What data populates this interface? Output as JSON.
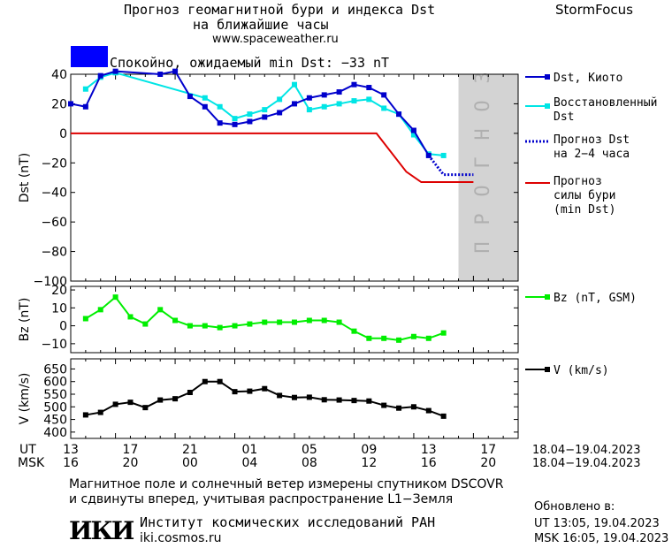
{
  "header": {
    "title_line1": "Прогноз геомагнитной бури и индекса Dst",
    "title_line2": "на ближайшие часы",
    "site": "www.spaceweather.ru",
    "brand": "StormFocus"
  },
  "status": {
    "text": "Спокойно, ожидаемый min Dst: −33 nT",
    "color": "#0000ff"
  },
  "forecast_zone_label": "ПРОГНОЗ",
  "colors": {
    "dst_kyoto": "#0000cc",
    "dst_reconstructed": "#00e5e5",
    "dst_forecast": "#0000cc",
    "storm_forecast": "#dd0000",
    "bz": "#00ee00",
    "v": "#000000",
    "forecast_zone": "#d3d3d3"
  },
  "time_axis": {
    "ut_label": "UT",
    "msk_label": "MSK",
    "ut_ticks": [
      "13",
      "17",
      "21",
      "01",
      "05",
      "09",
      "13",
      "17"
    ],
    "msk_ticks": [
      "16",
      "20",
      "00",
      "04",
      "08",
      "12",
      "16",
      "20"
    ],
    "ut_range": "18.04−19.04.2023",
    "msk_range": "18.04−19.04.2023"
  },
  "footer": {
    "line1": "Магнитное поле и солнечный ветер измерены спутником DSCOVR",
    "line2": "и сдвинуты вперед, учитывая распространение L1−Земля",
    "logo": "ИКИ",
    "institute": "Институт космических исследований РАН",
    "institute_site": "iki.cosmos.ru",
    "updated_label": "Обновлено в:",
    "updated_ut": "UT  13:05, 19.04.2023",
    "updated_msk": "MSK 16:05, 19.04.2023"
  },
  "chart_data": [
    {
      "type": "line",
      "panel": "dst",
      "ylabel": "Dst (nT)",
      "ylim": [
        -100,
        40
      ],
      "yticks": [
        40,
        20,
        0,
        -20,
        -40,
        -60,
        -80,
        -100
      ],
      "xlim": [
        0,
        30
      ],
      "forecast_zone": [
        26,
        30
      ],
      "series": [
        {
          "name": "Dst, Киото",
          "x": [
            0,
            1,
            2,
            3,
            6,
            7,
            8,
            9,
            10,
            11,
            12,
            13,
            14,
            15,
            16,
            17,
            18,
            19,
            20,
            21,
            22,
            23,
            24
          ],
          "y": [
            20,
            18,
            39,
            42,
            40,
            42,
            25,
            18,
            7,
            6,
            8,
            11,
            14,
            20,
            24,
            26,
            28,
            33,
            31,
            26,
            13,
            2,
            -15
          ]
        },
        {
          "name": "Восстановленный Dst",
          "x": [
            1,
            2,
            3,
            9,
            10,
            11,
            12,
            13,
            14,
            15,
            16,
            17,
            18,
            19,
            20,
            21,
            22,
            23,
            24,
            25
          ],
          "y": [
            30,
            38,
            41,
            24,
            18,
            10,
            13,
            16,
            23,
            33,
            16,
            18,
            20,
            22,
            23,
            17,
            13,
            -1,
            -14,
            -15
          ]
        },
        {
          "name": "Прогноз Dst на 2−4 часа",
          "x": [
            24,
            25,
            26,
            27
          ],
          "y": [
            -15,
            -28,
            -28,
            -28
          ]
        },
        {
          "name": "Прогноз силы бури (min Dst)",
          "x": [
            0,
            20.5,
            22.5,
            23.5,
            24.5,
            27
          ],
          "y": [
            0,
            0,
            -26,
            -33,
            -33,
            -33
          ]
        }
      ]
    },
    {
      "type": "line",
      "panel": "bz",
      "ylabel": "Bz (nT)",
      "ylim": [
        -15,
        22
      ],
      "yticks": [
        20,
        10,
        0,
        -10
      ],
      "series": [
        {
          "name": "Bz (nT, GSM)",
          "x": [
            1,
            2,
            3,
            4,
            5,
            6,
            7,
            8,
            9,
            10,
            11,
            12,
            13,
            14,
            15,
            16,
            17,
            18,
            19,
            20,
            21,
            22,
            23,
            24,
            25
          ],
          "y": [
            4,
            9,
            16,
            5,
            1,
            9,
            3,
            0,
            0,
            -1,
            0,
            1,
            2,
            2,
            2,
            3,
            3,
            2,
            -3,
            -7,
            -7,
            -8,
            -6,
            -7,
            -4
          ]
        }
      ]
    },
    {
      "type": "line",
      "panel": "v",
      "ylabel": "V (km/s)",
      "ylim": [
        375,
        690
      ],
      "yticks": [
        650,
        600,
        550,
        500,
        450,
        400
      ],
      "series": [
        {
          "name": "V (km/s)",
          "x": [
            1,
            2,
            3,
            4,
            5,
            6,
            7,
            8,
            9,
            10,
            11,
            12,
            13,
            14,
            15,
            16,
            17,
            18,
            19,
            20,
            21,
            22,
            23,
            24,
            25
          ],
          "y": [
            468,
            478,
            510,
            518,
            497,
            527,
            532,
            557,
            600,
            600,
            560,
            562,
            572,
            545,
            537,
            538,
            528,
            527,
            525,
            523,
            506,
            495,
            500,
            485,
            463
          ]
        }
      ]
    }
  ]
}
